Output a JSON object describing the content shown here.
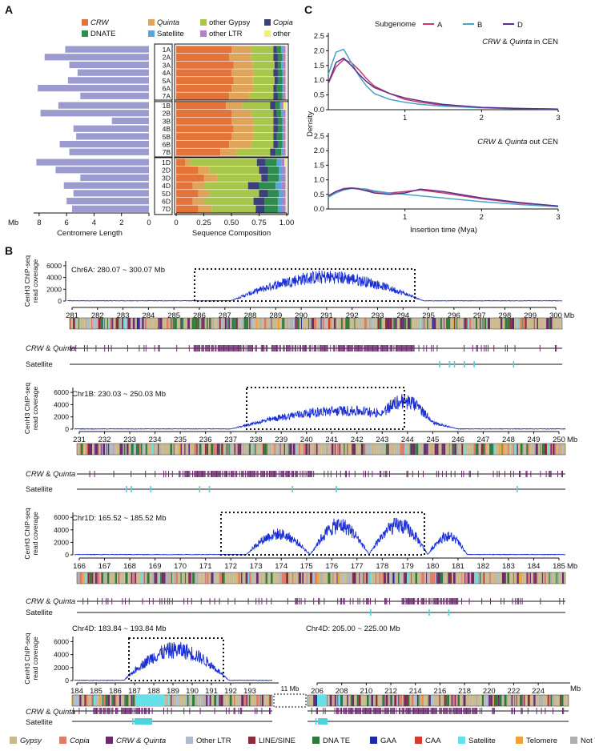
{
  "panels": {
    "A": "A",
    "B": "B",
    "C": "C"
  },
  "legend_top": [
    {
      "label": "CRW",
      "color": "#e4733a",
      "italic": true
    },
    {
      "label": "Quinta",
      "color": "#dfa35a",
      "italic": true
    },
    {
      "label": "other Gypsy",
      "color": "#a8c64a",
      "italic_part": "Gypsy",
      "prefix": "other "
    },
    {
      "label": "Copia",
      "color": "#3b3f7a",
      "italic": true
    },
    {
      "label": "DNATE",
      "color": "#2e8d4e"
    },
    {
      "label": "Satellite",
      "color": "#5aa6d8"
    },
    {
      "label": "other LTR",
      "color": "#b07fd0"
    },
    {
      "label": "other",
      "color": "#f1ee7d"
    }
  ],
  "panelA": {
    "left_xlabel": "Centromere Length",
    "left_unit": "Mb",
    "left_ticks": [
      "8",
      "6",
      "4",
      "2",
      "0"
    ],
    "right_xlabel": "Sequence Composition",
    "right_ticks": [
      "0",
      "0.25",
      "0.50",
      "0.75",
      "1.00"
    ],
    "groups": [
      {
        "rows": [
          "1A",
          "2A",
          "3A",
          "4A",
          "5A",
          "6A",
          "7A"
        ],
        "lengths": [
          6.1,
          7.6,
          5.8,
          5.2,
          5.9,
          8.1,
          5.0
        ]
      },
      {
        "rows": [
          "1B",
          "2B",
          "3B",
          "4B",
          "5B",
          "6B",
          "7B"
        ],
        "lengths": [
          6.6,
          7.9,
          2.7,
          5.5,
          5.3,
          6.5,
          5.8
        ]
      },
      {
        "rows": [
          "1D",
          "2D",
          "3D",
          "4D",
          "5D",
          "6D",
          "7D"
        ],
        "lengths": [
          8.2,
          6.8,
          5.0,
          6.2,
          5.5,
          6.0,
          5.6
        ]
      }
    ],
    "composition_order": [
      "CRW",
      "Quinta",
      "other Gypsy",
      "Copia",
      "DNATE",
      "Satellite",
      "other LTR",
      "other"
    ],
    "composition": [
      [
        [
          0.5,
          0.18,
          0.2,
          0.03,
          0.04,
          0.02,
          0.02,
          0.01
        ],
        [
          0.48,
          0.2,
          0.2,
          0.04,
          0.04,
          0.01,
          0.02,
          0.01
        ],
        [
          0.52,
          0.17,
          0.2,
          0.03,
          0.03,
          0.02,
          0.02,
          0.01
        ],
        [
          0.5,
          0.2,
          0.18,
          0.04,
          0.04,
          0.01,
          0.02,
          0.01
        ],
        [
          0.52,
          0.17,
          0.2,
          0.03,
          0.04,
          0.01,
          0.02,
          0.01
        ],
        [
          0.5,
          0.2,
          0.18,
          0.03,
          0.05,
          0.01,
          0.02,
          0.01
        ],
        [
          0.48,
          0.18,
          0.22,
          0.04,
          0.04,
          0.01,
          0.02,
          0.01
        ]
      ],
      [
        [
          0.45,
          0.15,
          0.25,
          0.05,
          0.04,
          0.01,
          0.02,
          0.03
        ],
        [
          0.5,
          0.18,
          0.2,
          0.03,
          0.04,
          0.02,
          0.02,
          0.01
        ],
        [
          0.5,
          0.2,
          0.18,
          0.04,
          0.04,
          0.01,
          0.02,
          0.01
        ],
        [
          0.52,
          0.18,
          0.18,
          0.04,
          0.04,
          0.01,
          0.02,
          0.01
        ],
        [
          0.5,
          0.2,
          0.18,
          0.03,
          0.05,
          0.01,
          0.02,
          0.01
        ],
        [
          0.48,
          0.2,
          0.2,
          0.04,
          0.04,
          0.01,
          0.02,
          0.01
        ],
        [
          0.4,
          0.15,
          0.3,
          0.05,
          0.05,
          0.02,
          0.02,
          0.01
        ]
      ],
      [
        [
          0.08,
          0.05,
          0.6,
          0.08,
          0.1,
          0.04,
          0.03,
          0.02
        ],
        [
          0.2,
          0.1,
          0.45,
          0.08,
          0.1,
          0.03,
          0.03,
          0.01
        ],
        [
          0.25,
          0.12,
          0.4,
          0.06,
          0.1,
          0.03,
          0.03,
          0.01
        ],
        [
          0.15,
          0.1,
          0.4,
          0.1,
          0.15,
          0.05,
          0.04,
          0.01
        ],
        [
          0.2,
          0.1,
          0.45,
          0.08,
          0.1,
          0.04,
          0.02,
          0.01
        ],
        [
          0.15,
          0.1,
          0.45,
          0.1,
          0.12,
          0.04,
          0.03,
          0.01
        ],
        [
          0.2,
          0.12,
          0.4,
          0.08,
          0.12,
          0.04,
          0.03,
          0.01
        ]
      ]
    ]
  },
  "panelC": {
    "legend_title": "Subgenome",
    "series": [
      {
        "name": "A",
        "color": "#c93a6d"
      },
      {
        "name": "B",
        "color": "#4aa3c9"
      },
      {
        "name": "D",
        "color": "#5b2f8f"
      }
    ],
    "ylabel": "Density",
    "xlabel": "Insertion time (Mya)",
    "yticks": [
      "0.0",
      "0.5",
      "1.0",
      "1.5",
      "2.0",
      "2.5"
    ],
    "xticks": [
      "1",
      "2",
      "3"
    ],
    "top_title_a": "CRW",
    "top_title_b": " & ",
    "top_title_c": "Quinta",
    "top_title_d": " in CEN",
    "bot_title_d": " out CEN",
    "top_curves": {
      "x": [
        0,
        0.1,
        0.2,
        0.3,
        0.4,
        0.5,
        0.6,
        0.8,
        1.0,
        1.2,
        1.5,
        2.0,
        2.5,
        3.0
      ],
      "A": [
        0.9,
        1.45,
        1.7,
        1.6,
        1.35,
        1.05,
        0.8,
        0.55,
        0.35,
        0.25,
        0.15,
        0.08,
        0.04,
        0.02
      ],
      "B": [
        1.2,
        1.95,
        2.05,
        1.6,
        1.15,
        0.8,
        0.55,
        0.35,
        0.25,
        0.18,
        0.12,
        0.06,
        0.03,
        0.02
      ],
      "D": [
        0.9,
        1.6,
        1.75,
        1.5,
        1.2,
        0.95,
        0.75,
        0.55,
        0.4,
        0.3,
        0.18,
        0.08,
        0.04,
        0.02
      ]
    },
    "bot_curves": {
      "x": [
        0,
        0.1,
        0.2,
        0.3,
        0.4,
        0.5,
        0.6,
        0.8,
        1.0,
        1.2,
        1.5,
        2.0,
        2.5,
        3.0
      ],
      "A": [
        0.45,
        0.6,
        0.7,
        0.72,
        0.7,
        0.65,
        0.6,
        0.55,
        0.6,
        0.65,
        0.55,
        0.35,
        0.2,
        0.1
      ],
      "B": [
        0.4,
        0.55,
        0.65,
        0.7,
        0.7,
        0.68,
        0.62,
        0.55,
        0.5,
        0.45,
        0.38,
        0.25,
        0.15,
        0.08
      ],
      "D": [
        0.45,
        0.6,
        0.68,
        0.72,
        0.68,
        0.62,
        0.55,
        0.5,
        0.55,
        0.68,
        0.6,
        0.38,
        0.22,
        0.1
      ]
    }
  },
  "panelB": {
    "ylabel1": "CenH3 ChIP-seq",
    "ylabel2": "read coverage",
    "yticks": [
      "0",
      "2000",
      "4000",
      "6000"
    ],
    "crw_label_a": "CRW",
    "crw_label_b": " & ",
    "crw_label_c": "Quinta",
    "sat_label": "Satellite",
    "mb": "Mb",
    "gap_label": "11 Mb",
    "tracks": [
      {
        "title": "Chr6A: 280.07 ~ 300.07 Mb",
        "ticks": [
          "281",
          "282",
          "283",
          "284",
          "285",
          "286",
          "287",
          "288",
          "289",
          "290",
          "291",
          "292",
          "293",
          "294",
          "295",
          "296",
          "297",
          "298",
          "299",
          "300"
        ]
      },
      {
        "title": "Chr1B: 230.03 ~ 250.03 Mb",
        "ticks": [
          "231",
          "232",
          "233",
          "234",
          "235",
          "236",
          "237",
          "238",
          "239",
          "240",
          "241",
          "242",
          "243",
          "244",
          "245",
          "246",
          "247",
          "248",
          "249",
          "250"
        ]
      },
      {
        "title": "Chr1D: 165.52 ~ 185.52 Mb",
        "ticks": [
          "166",
          "167",
          "168",
          "169",
          "170",
          "171",
          "172",
          "173",
          "174",
          "175",
          "176",
          "177",
          "178",
          "179",
          "180",
          "181",
          "182",
          "183",
          "184",
          "185"
        ]
      },
      {
        "title": "Chr4D: 183.84 ~ 193.84 Mb",
        "ticks": [
          "184",
          "185",
          "186",
          "187",
          "188",
          "189",
          "190",
          "191",
          "192",
          "193"
        ]
      },
      {
        "title": "Chr4D: 205.00 ~ 225.00 Mb",
        "ticks": [
          "206",
          "208",
          "210",
          "212",
          "214",
          "216",
          "218",
          "220",
          "222",
          "224"
        ]
      }
    ]
  },
  "legend_bottom": [
    {
      "label": "Gypsy",
      "color": "#c9b98e",
      "italic": true
    },
    {
      "label": "Copia",
      "color": "#e07a6a",
      "italic": true
    },
    {
      "label": "CRW & Quinta",
      "color": "#6b2a6e",
      "italic": true
    },
    {
      "label": "Other LTR",
      "color": "#a9bcd0"
    },
    {
      "label": "LINE/SINE",
      "color": "#8b2b3a"
    },
    {
      "label": "DNA TE",
      "color": "#2f7a3a"
    },
    {
      "label": "GAA",
      "color": "#1c2aa8"
    },
    {
      "label": "CAA",
      "color": "#d63a2e"
    },
    {
      "label": "Satellite",
      "color": "#66e0e8"
    },
    {
      "label": "Telomere",
      "color": "#f0a23a"
    },
    {
      "label": "Not TE",
      "color": "#b0b0b0"
    }
  ]
}
